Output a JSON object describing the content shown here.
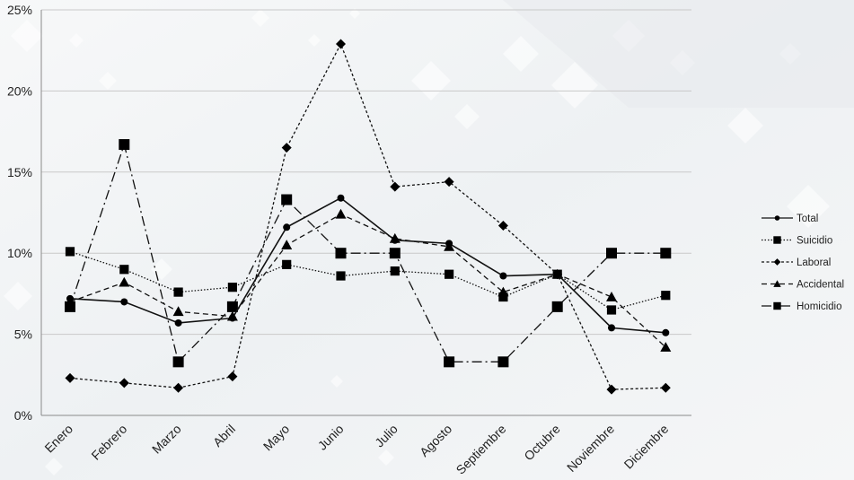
{
  "chart_data": {
    "type": "line",
    "title": "",
    "xlabel": "",
    "ylabel": "",
    "categories": [
      "Enero",
      "Febrero",
      "Marzo",
      "Abril",
      "Mayo",
      "Junio",
      "Julio",
      "Agosto",
      "Septiembre",
      "Octubre",
      "Noviembre",
      "Diciembre"
    ],
    "ylim": [
      0,
      25
    ],
    "yticks": [
      0,
      5,
      10,
      15,
      20,
      25
    ],
    "ytick_labels": [
      "0%",
      "5%",
      "10%",
      "15%",
      "20%",
      "25%"
    ],
    "grid": true,
    "legend_position": "right",
    "series": [
      {
        "name": "Total",
        "marker": "circle",
        "dash": "solid",
        "values": [
          7.2,
          7.0,
          5.7,
          6.0,
          11.6,
          13.4,
          10.8,
          10.6,
          8.6,
          8.7,
          5.4,
          5.1
        ]
      },
      {
        "name": "Suicidio",
        "marker": "square",
        "dash": "dotted",
        "values": [
          10.1,
          9.0,
          7.6,
          7.9,
          9.3,
          8.6,
          8.9,
          8.7,
          7.3,
          8.7,
          6.5,
          7.4
        ]
      },
      {
        "name": "Laboral",
        "marker": "diamond",
        "dash": "short-dash",
        "values": [
          2.3,
          2.0,
          1.7,
          2.4,
          16.5,
          22.9,
          14.1,
          14.4,
          11.7,
          8.7,
          1.6,
          1.7
        ]
      },
      {
        "name": "Accidental",
        "marker": "triangle",
        "dash": "dash",
        "values": [
          7.0,
          8.2,
          6.4,
          6.1,
          10.5,
          12.4,
          10.9,
          10.4,
          7.6,
          8.7,
          7.3,
          4.2
        ]
      },
      {
        "name": "Homicidio",
        "marker": "square",
        "dash": "long-dash-dot",
        "values": [
          6.7,
          16.7,
          3.3,
          6.7,
          13.3,
          10.0,
          10.0,
          3.3,
          3.3,
          6.7,
          10.0,
          10.0
        ]
      }
    ]
  }
}
